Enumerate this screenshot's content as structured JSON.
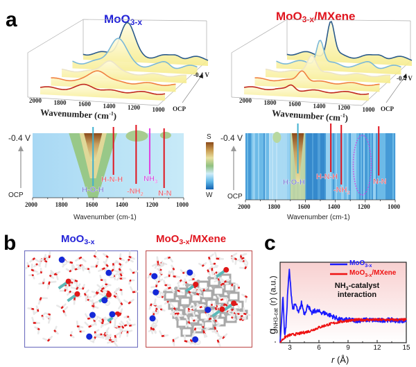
{
  "panel_a": {
    "label": "a",
    "left": {
      "title": "MoO",
      "title_sub": "3-x",
      "title_color": "#2424d8",
      "waterfall_xlabel": "Wavenumber (cm",
      "waterfall_xlabel_sup": "-1",
      "waterfall_ticks": [
        "2000",
        "1800",
        "1600",
        "1400",
        "1200",
        "1000"
      ],
      "potential_top": "-0.4 V",
      "potential_bottom": "OCP",
      "map_ticks": [
        "2000",
        "1800",
        "1600",
        "1400",
        "1200",
        "1000"
      ],
      "map_xlabel": "Wavenumber (cm-1)",
      "map_top": "-0.4 V",
      "map_bottom": "OCP",
      "bands": [
        {
          "label": "H-O-H",
          "wavenumber": 1600,
          "color": "#3fb0d0",
          "label_color": "#8080d8"
        },
        {
          "label": "H-N-H",
          "wavenumber": 1465,
          "color": "#e0141e",
          "label_color": "#e06070"
        },
        {
          "label": "-NH",
          "sub": "2",
          "wavenumber": 1315,
          "color": "#e0141e",
          "label_color": "#e06070"
        },
        {
          "label": "NH",
          "sub": "3",
          "wavenumber": 1225,
          "color": "#e040e0",
          "label_color": "#d050e0"
        },
        {
          "label": "N-N",
          "wavenumber": 1130,
          "color": "#e0141e",
          "label_color": "#e06070"
        }
      ]
    },
    "right": {
      "title": "MoO",
      "title_sub": "3-x",
      "title_rest": "/MXene",
      "title_color": "#e0141e",
      "waterfall_xlabel": "Wavenumber (cm",
      "waterfall_xlabel_sup": "-1",
      "waterfall_ticks": [
        "2000",
        "1800",
        "1600",
        "1400",
        "1200",
        "1000"
      ],
      "potential_top": "-0.4 V",
      "potential_bottom": "OCP",
      "map_ticks": [
        "2000",
        "1800",
        "1600",
        "1400",
        "1200",
        "1000"
      ],
      "map_xlabel": "Wavenumber (cm-1)",
      "map_top": "-0.4 V",
      "map_bottom": "OCP",
      "bands": [
        {
          "label": "H-O-H",
          "wavenumber": 1650,
          "color": "#3fb0d0",
          "label_color": "#8080d8"
        },
        {
          "label": "H-N-H",
          "wavenumber": 1430,
          "color": "#e0141e",
          "label_color": "#e06070"
        },
        {
          "label": "-NH",
          "sub": "2",
          "wavenumber": 1360,
          "color": "#e0141e",
          "label_color": "#e06070"
        },
        {
          "label": "N-N",
          "wavenumber": 1110,
          "color": "#e0141e",
          "label_color": "#e06070"
        }
      ],
      "ellipse_wavenumber": 1220,
      "ellipse_color": "#d040e0"
    },
    "colorbar": {
      "top": "S",
      "bottom": "W",
      "colors": [
        "#8a4a1a",
        "#c89a50",
        "#e8e0a0",
        "#90c080",
        "#d0ecf8",
        "#60b8e8",
        "#1060b0"
      ]
    }
  },
  "panel_b": {
    "label": "b",
    "left_title": "MoO",
    "left_title_sub": "3-x",
    "right_title": "MoO",
    "right_title_sub": "3-x",
    "right_title_rest": "/MXene",
    "left_frame_color": "#7070c0",
    "right_frame_color": "#c05050"
  },
  "chart_data": {
    "type": "line",
    "panel_label": "c",
    "xlabel": "r (Å)",
    "xlabel_var": "r",
    "xlabel_unit": " (Å)",
    "ylabel": "g",
    "ylabel_sub": "NH3-cat",
    "ylabel_rest": " (r)  (a.u.)",
    "xlim": [
      2,
      15
    ],
    "ylim": [
      0,
      1
    ],
    "xticks": [
      "3",
      "6",
      "9",
      "12",
      "15"
    ],
    "annotation": [
      "NH",
      "3",
      "-catalyst",
      "interaction"
    ],
    "legend_position": "top-right",
    "series": [
      {
        "name": "MoO",
        "name_sub": "3-x",
        "color": "#1a1aff",
        "x": [
          2.0,
          2.15,
          2.3,
          2.45,
          2.6,
          2.8,
          2.95,
          3.1,
          3.3,
          3.6,
          3.9,
          4.2,
          4.5,
          4.9,
          5.2,
          5.6,
          6.2,
          6.8,
          7.5,
          8.2,
          9,
          10,
          11,
          12,
          13,
          14,
          15
        ],
        "y": [
          0,
          0.3,
          0.62,
          0.1,
          0.2,
          0.7,
          0.95,
          0.7,
          0.45,
          0.5,
          0.38,
          0.52,
          0.38,
          0.5,
          0.38,
          0.42,
          0.4,
          0.38,
          0.34,
          0.3,
          0.3,
          0.29,
          0.3,
          0.29,
          0.3,
          0.29,
          0.29
        ]
      },
      {
        "name": "MoO",
        "name_sub": "3-x",
        "name_rest": "/MXene",
        "color": "#ee1111",
        "x": [
          2.0,
          2.3,
          2.6,
          3,
          4,
          5,
          6,
          7,
          8,
          9,
          10,
          11,
          12,
          13,
          15
        ],
        "y": [
          0,
          0.05,
          0.08,
          0.1,
          0.12,
          0.15,
          0.2,
          0.24,
          0.27,
          0.29,
          0.3,
          0.3,
          0.3,
          0.3,
          0.3
        ]
      }
    ]
  }
}
